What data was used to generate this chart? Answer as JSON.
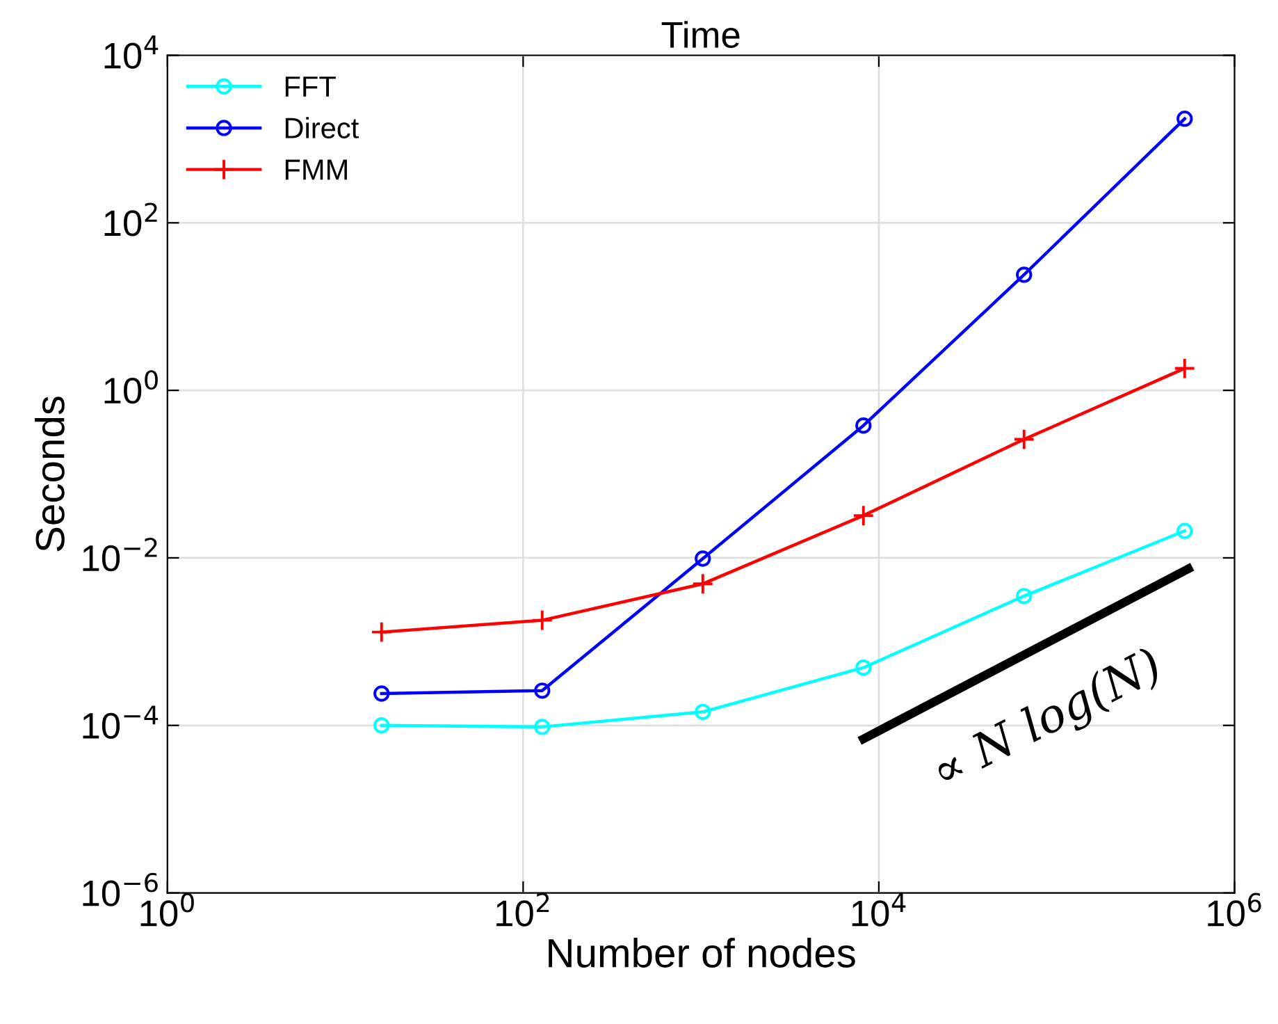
{
  "chart_data": {
    "type": "line",
    "title": "Time",
    "xlabel": "Number of nodes",
    "ylabel": "Seconds",
    "log": "xy",
    "grid": true,
    "legend": "top left",
    "x": [
      16,
      128,
      1024,
      8192,
      65536,
      524288
    ],
    "xlim": [
      1,
      1000000
    ],
    "xticks": [
      {
        "value": 1,
        "label": "10$^{0}$"
      },
      {
        "value": 100,
        "label": "10$^{2}$"
      },
      {
        "value": 10000,
        "label": "10$^{4}$"
      },
      {
        "value": 1000000,
        "label": "10$^{6}$"
      }
    ],
    "ylim": [
      1e-06,
      10000
    ],
    "yticks": [
      {
        "value": 1e-06,
        "label": "10$^{−6}$"
      },
      {
        "value": 0.0001,
        "label": "10$^{−4}$"
      },
      {
        "value": 0.01,
        "label": "10$^{−2}$"
      },
      {
        "value": 1,
        "label": "10$^{0}$"
      },
      {
        "value": 100,
        "label": "10$^{2}$"
      },
      {
        "value": 10000,
        "label": "10$^{4}$"
      }
    ],
    "series": [
      {
        "name": "FFT",
        "color": "#00ffff",
        "marker": "circle",
        "values": [
          0.0001,
          9.6e-05,
          0.000145,
          0.00049,
          0.0035,
          0.021
        ]
      },
      {
        "name": "Direct",
        "color": "#0000ff",
        "marker": "circle",
        "values": [
          0.00024,
          0.00026,
          0.0098,
          0.38,
          24,
          1750
        ]
      },
      {
        "name": "FMM",
        "color": "#ff0000",
        "marker": "cross",
        "values": [
          0.0013,
          0.0018,
          0.0049,
          0.032,
          0.26,
          1.83
        ]
      },
      {
        "color": "#000000",
        "marker": "none",
        "x": [
          8190,
          550000
        ],
        "values": [
          6.9e-05,
          0.0074
        ]
      }
    ],
    "annotations": [
      "∝ N log(N)"
    ]
  }
}
